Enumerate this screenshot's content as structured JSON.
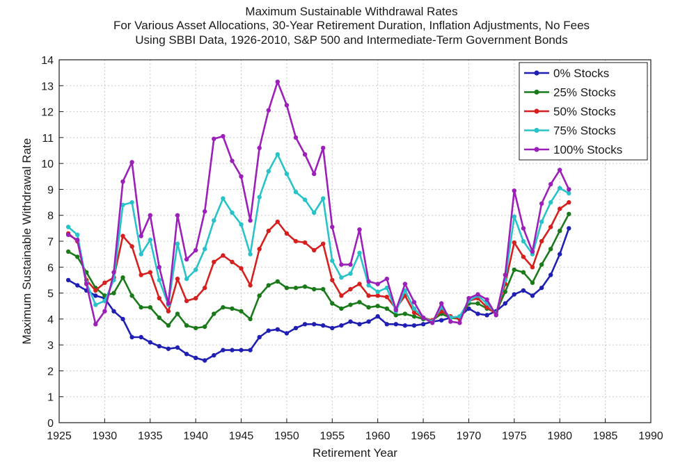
{
  "chart_data": {
    "type": "line",
    "title": [
      "Maximum Sustainable Withdrawal Rates",
      "For Various Asset Allocations, 30-Year Retirement Duration, Inflation Adjustments, No Fees",
      "Using SBBI Data, 1926-2010, S&P 500 and Intermediate-Term Government Bonds"
    ],
    "xlabel": "Retirement Year",
    "ylabel": "Maximum Sustainable Withdrawal Rate",
    "xlim": [
      1925,
      1990
    ],
    "ylim": [
      0,
      14
    ],
    "xticks": [
      1925,
      1930,
      1935,
      1940,
      1945,
      1950,
      1955,
      1960,
      1965,
      1970,
      1975,
      1980,
      1985,
      1990
    ],
    "yticks": [
      0,
      1,
      2,
      3,
      4,
      5,
      6,
      7,
      8,
      9,
      10,
      11,
      12,
      13,
      14
    ],
    "grid": true,
    "legend_position": "top-right",
    "x": [
      1926,
      1927,
      1928,
      1929,
      1930,
      1931,
      1932,
      1933,
      1934,
      1935,
      1936,
      1937,
      1938,
      1939,
      1940,
      1941,
      1942,
      1943,
      1944,
      1945,
      1946,
      1947,
      1948,
      1949,
      1950,
      1951,
      1952,
      1953,
      1954,
      1955,
      1956,
      1957,
      1958,
      1959,
      1960,
      1961,
      1962,
      1963,
      1964,
      1965,
      1966,
      1967,
      1968,
      1969,
      1970,
      1971,
      1972,
      1973,
      1974,
      1975,
      1976,
      1977,
      1978,
      1979,
      1980,
      1981
    ],
    "series": [
      {
        "name": "0% Stocks",
        "color": "#1f1fb4",
        "values": [
          5.5,
          5.3,
          5.1,
          4.9,
          4.8,
          4.3,
          4.0,
          3.3,
          3.3,
          3.1,
          2.95,
          2.85,
          2.9,
          2.65,
          2.5,
          2.4,
          2.6,
          2.8,
          2.8,
          2.8,
          2.8,
          3.3,
          3.55,
          3.6,
          3.45,
          3.65,
          3.8,
          3.8,
          3.75,
          3.65,
          3.75,
          3.9,
          3.8,
          3.9,
          4.1,
          3.8,
          3.8,
          3.75,
          3.75,
          3.8,
          3.9,
          3.95,
          4.05,
          4.1,
          4.4,
          4.2,
          4.15,
          4.3,
          4.6,
          4.95,
          5.1,
          4.9,
          5.2,
          5.7,
          6.5,
          7.5
        ]
      },
      {
        "name": "25% Stocks",
        "color": "#1a7a1a",
        "values": [
          6.6,
          6.4,
          5.8,
          5.2,
          4.9,
          5.0,
          5.6,
          4.9,
          4.45,
          4.45,
          4.05,
          3.75,
          4.2,
          3.75,
          3.65,
          3.7,
          4.2,
          4.45,
          4.4,
          4.3,
          4.0,
          4.9,
          5.3,
          5.45,
          5.2,
          5.2,
          5.25,
          5.15,
          5.15,
          4.6,
          4.4,
          4.55,
          4.65,
          4.45,
          4.5,
          4.4,
          4.15,
          4.2,
          4.1,
          4.0,
          3.95,
          4.2,
          4.05,
          4.0,
          4.6,
          4.6,
          4.4,
          4.25,
          5.05,
          5.9,
          5.8,
          5.4,
          6.1,
          6.7,
          7.4,
          8.05
        ]
      },
      {
        "name": "50% Stocks",
        "color": "#d61f1f",
        "values": [
          7.3,
          7.0,
          5.5,
          5.1,
          5.4,
          5.6,
          7.2,
          6.8,
          5.7,
          5.8,
          4.8,
          4.3,
          5.55,
          4.7,
          4.8,
          5.2,
          6.2,
          6.45,
          6.2,
          5.95,
          5.3,
          6.7,
          7.4,
          7.75,
          7.3,
          7.0,
          6.95,
          6.65,
          6.9,
          5.5,
          4.9,
          5.15,
          5.35,
          4.9,
          4.9,
          4.85,
          4.4,
          4.9,
          4.25,
          4.05,
          3.95,
          4.3,
          4.1,
          4.0,
          4.7,
          4.8,
          4.45,
          4.2,
          5.35,
          6.95,
          6.4,
          6.0,
          7.0,
          7.55,
          8.25,
          8.5
        ]
      },
      {
        "name": "75% Stocks",
        "color": "#27c3c8",
        "values": [
          7.55,
          7.25,
          5.4,
          4.55,
          4.7,
          5.5,
          8.4,
          8.5,
          6.5,
          7.05,
          5.5,
          4.55,
          6.9,
          5.55,
          5.9,
          6.7,
          7.8,
          8.65,
          8.1,
          7.65,
          6.5,
          8.7,
          9.7,
          10.35,
          9.6,
          8.9,
          8.6,
          8.1,
          8.65,
          6.25,
          5.6,
          5.75,
          6.55,
          5.3,
          5.05,
          5.2,
          4.3,
          5.1,
          4.4,
          4.05,
          3.9,
          4.45,
          4.05,
          4.1,
          4.7,
          4.9,
          4.6,
          4.2,
          5.5,
          7.95,
          7.0,
          6.5,
          7.75,
          8.5,
          9.05,
          8.85
        ]
      },
      {
        "name": "100% Stocks",
        "color": "#9b1fb8",
        "values": [
          7.25,
          7.05,
          5.35,
          3.8,
          4.3,
          5.8,
          9.3,
          10.05,
          7.2,
          8.0,
          6.0,
          4.6,
          8.0,
          6.3,
          6.65,
          8.15,
          10.95,
          11.05,
          10.1,
          9.5,
          7.8,
          10.6,
          12.05,
          13.15,
          12.25,
          11.0,
          10.35,
          9.6,
          10.6,
          7.55,
          6.1,
          6.1,
          7.45,
          5.45,
          5.35,
          5.55,
          4.35,
          5.35,
          4.65,
          4.05,
          3.85,
          4.6,
          3.9,
          3.85,
          4.8,
          4.95,
          4.75,
          4.15,
          5.7,
          8.95,
          7.5,
          6.6,
          8.45,
          9.2,
          9.75,
          9.0
        ]
      }
    ]
  }
}
